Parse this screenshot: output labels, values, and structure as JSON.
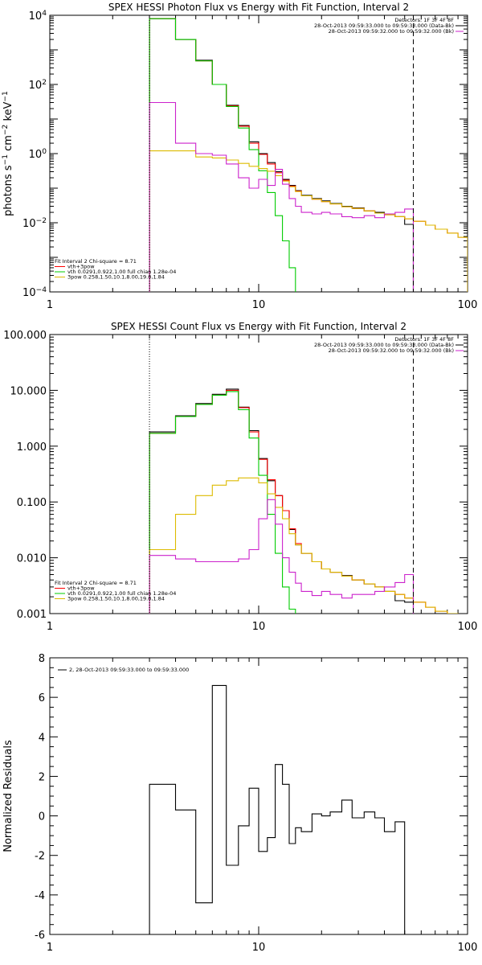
{
  "chart_data": [
    {
      "type": "line",
      "title": "SPEX HESSI Photon Flux vs Energy with Fit Function, Interval 2",
      "ylabel": "photons s⁻¹ cm⁻² keV⁻¹",
      "xlabel": "",
      "xscale": "log",
      "yscale": "log",
      "xlim": [
        1,
        100
      ],
      "ylim": [
        0.0001,
        10000
      ],
      "x_ticks": [
        "1",
        "10",
        "100"
      ],
      "y_ticks": [
        "10⁻⁴",
        "10⁻²",
        "10⁰",
        "10²",
        "10⁴"
      ],
      "legend_top_right": [
        "Detectors: 1F 3F 4F 8F",
        "28-Oct-2013 09:59:33.000 to 09:59:33.000 (Data-Bk)",
        "28-Oct-2013 09:59:32.000 to 09:59:32.000 (Bk)"
      ],
      "legend_bottom_left": [
        "Fit Interval 2   Chi-square = 8.71",
        "vth+3pow",
        "vth 0.0291,0.922,1.00  full chian 1.28e-04",
        "3pow 0.258,1.50,10.1,8.00,19.0,1.84"
      ],
      "markers": {
        "dotted_x": 3.0,
        "dashed_x": 55
      },
      "colors": {
        "data": "#000000",
        "total": "#ff0000",
        "vth": "#00cc00",
        "pow": "#ddbb00",
        "bk": "#cc22cc"
      },
      "edges": [
        3.0,
        4.0,
        5.0,
        6.0,
        7.0,
        8.0,
        9.0,
        10.0,
        11.0,
        12.0,
        13.0,
        14.0,
        15.0,
        16.0,
        18.0,
        20.0,
        22.0,
        25.0,
        28.0,
        32.0,
        36.0,
        40.0,
        45.0,
        50.0,
        55.0,
        63.0,
        70.0,
        80.0,
        90.0,
        100.0
      ],
      "series": [
        {
          "name": "Data-Bk",
          "color": "#000000",
          "values": [
            8000,
            2000,
            500,
            100,
            25,
            6.5,
            2.2,
            1.0,
            0.55,
            0.3,
            0.18,
            0.12,
            0.085,
            0.062,
            0.05,
            0.043,
            0.036,
            0.03,
            0.027,
            0.022,
            0.02,
            0.018,
            0.015,
            0.009
          ]
        },
        {
          "name": "vth+3pow",
          "color": "#ff0000",
          "values": [
            8000,
            2000,
            480,
            100,
            24,
            6.2,
            2.0,
            0.95,
            0.5,
            0.28,
            0.17,
            0.115,
            0.082,
            0.06,
            0.048,
            0.041,
            0.035,
            0.029,
            0.026,
            0.022,
            0.019,
            0.017,
            0.015,
            0.013,
            0.011,
            0.0085,
            0.0065,
            0.005,
            0.0038
          ]
        },
        {
          "name": "vth",
          "color": "#00cc00",
          "values": [
            8000,
            2000,
            480,
            100,
            23,
            5.5,
            1.3,
            0.32,
            0.075,
            0.016,
            0.003,
            0.0005,
            9e-05,
            1e-05
          ]
        },
        {
          "name": "3pow",
          "color": "#ddbb00",
          "values": [
            1.2,
            1.2,
            0.8,
            0.75,
            0.65,
            0.52,
            0.43,
            0.37,
            0.31,
            0.23,
            0.16,
            0.11,
            0.08,
            0.06,
            0.048,
            0.041,
            0.035,
            0.029,
            0.026,
            0.022,
            0.019,
            0.017,
            0.015,
            0.013,
            0.011,
            0.0085,
            0.0065,
            0.005,
            0.0038
          ]
        },
        {
          "name": "Bk",
          "color": "#cc22cc",
          "values": [
            30,
            2.0,
            1.0,
            0.9,
            0.5,
            0.2,
            0.1,
            0.18,
            0.12,
            0.35,
            0.13,
            0.05,
            0.03,
            0.02,
            0.018,
            0.02,
            0.018,
            0.015,
            0.014,
            0.016,
            0.014,
            0.018,
            0.02,
            0.025
          ]
        }
      ]
    },
    {
      "type": "line",
      "title": "SPEX HESSI Count Flux vs Energy with Fit Function, Interval 2",
      "ylabel": "",
      "xlabel": "",
      "xscale": "log",
      "yscale": "log",
      "xlim": [
        1,
        100
      ],
      "ylim": [
        0.001,
        100
      ],
      "x_ticks": [
        "1",
        "10",
        "100"
      ],
      "y_ticks": [
        "0.001",
        "0.010",
        "0.100",
        "1.000",
        "10.000",
        "100.000"
      ],
      "legend_top_right": [
        "Detectors: 1F 3F 4F 8F",
        "28-Oct-2013 09:59:33.000 to 09:59:33.000 (Data-Bk)",
        "28-Oct-2013 09:59:32.000 to 09:59:32.000 (Bk)"
      ],
      "legend_bottom_left": [
        "Fit Interval 2   Chi-square = 8.71",
        "vth+3pow",
        "vth 0.0291,0.922,1.00  full chian 1.28e-04",
        "3pow 0.258,1.50,10.1,8.00,19.0,1.84"
      ],
      "markers": {
        "dotted_x": 3.0,
        "dashed_x": 55
      },
      "colors": {
        "data": "#000000",
        "total": "#ff0000",
        "vth": "#00cc00",
        "pow": "#ddbb00",
        "bk": "#cc22cc"
      },
      "edges": [
        3.0,
        4.0,
        5.0,
        6.0,
        7.0,
        8.0,
        9.0,
        10.0,
        11.0,
        12.0,
        13.0,
        14.0,
        15.0,
        16.0,
        18.0,
        20.0,
        22.0,
        25.0,
        28.0,
        32.0,
        36.0,
        40.0,
        45.0,
        50.0,
        55.0,
        63.0,
        70.0,
        80.0,
        90.0,
        100.0
      ],
      "series": [
        {
          "name": "Data-Bk",
          "color": "#000000",
          "values": [
            1.8,
            3.5,
            5.8,
            8.5,
            10.5,
            5.0,
            1.9,
            0.6,
            0.24,
            0.13,
            0.07,
            0.032,
            0.017,
            0.012,
            0.0085,
            0.0063,
            0.0055,
            0.0048,
            0.004,
            0.0034,
            0.003,
            0.0025,
            0.0017,
            0.0016
          ]
        },
        {
          "name": "vth+3pow",
          "color": "#ff0000",
          "values": [
            1.7,
            3.4,
            5.6,
            8.2,
            10.0,
            4.9,
            1.8,
            0.58,
            0.25,
            0.13,
            0.07,
            0.033,
            0.018,
            0.012,
            0.0085,
            0.0063,
            0.0055,
            0.0047,
            0.004,
            0.0034,
            0.003,
            0.0025,
            0.0022,
            0.0019,
            0.0016,
            0.0013,
            0.0011,
            0.001,
            0.0009
          ]
        },
        {
          "name": "vth",
          "color": "#00cc00",
          "values": [
            1.7,
            3.4,
            5.6,
            8.2,
            9.5,
            4.5,
            1.4,
            0.3,
            0.06,
            0.012,
            0.003,
            0.0012,
            0.0008
          ]
        },
        {
          "name": "3pow",
          "color": "#ddbb00",
          "values": [
            0.014,
            0.06,
            0.13,
            0.2,
            0.24,
            0.27,
            0.27,
            0.22,
            0.14,
            0.08,
            0.05,
            0.027,
            0.017,
            0.012,
            0.0085,
            0.0063,
            0.0055,
            0.0047,
            0.004,
            0.0034,
            0.003,
            0.0025,
            0.0022,
            0.0019,
            0.0016,
            0.0013,
            0.0011,
            0.001,
            0.0009
          ]
        },
        {
          "name": "Bk",
          "color": "#cc22cc",
          "values": [
            0.011,
            0.0095,
            0.0085,
            0.0085,
            0.0085,
            0.0095,
            0.014,
            0.05,
            0.11,
            0.04,
            0.01,
            0.0055,
            0.0035,
            0.0025,
            0.0021,
            0.0025,
            0.0022,
            0.0019,
            0.0022,
            0.0022,
            0.0025,
            0.003,
            0.0036,
            0.005
          ]
        }
      ]
    },
    {
      "type": "line",
      "title": "",
      "ylabel": "Normalized Residuals",
      "xlabel": "",
      "xscale": "log",
      "yscale": "linear",
      "xlim": [
        1,
        100
      ],
      "ylim": [
        -6,
        8
      ],
      "x_ticks": [
        "1",
        "10",
        "100"
      ],
      "y_ticks": [
        "-6",
        "-4",
        "-2",
        "0",
        "2",
        "4",
        "6",
        "8"
      ],
      "legend_top_left": [
        "2, 28-Oct-2013 09:59:33.000 to 09:59:33.000"
      ],
      "edges": [
        3.0,
        4.0,
        5.0,
        6.0,
        7.0,
        8.0,
        9.0,
        10.0,
        11.0,
        12.0,
        13.0,
        14.0,
        15.0,
        16.0,
        18.0,
        20.0,
        22.0,
        25.0,
        28.0,
        32.0,
        36.0,
        40.0,
        45.0,
        50.0,
        55.0
      ],
      "series": [
        {
          "name": "2, 28-Oct-2013 09:59:33.000 to 09:59:33.000",
          "color": "#000000",
          "values": [
            1.6,
            0.3,
            -4.4,
            6.6,
            -2.5,
            -0.5,
            1.4,
            -1.8,
            -1.1,
            2.6,
            1.6,
            -1.4,
            -0.6,
            -0.8,
            0.1,
            0.0,
            0.2,
            0.8,
            -0.1,
            0.2,
            -0.1,
            -0.8,
            -0.3,
            -6
          ]
        }
      ]
    }
  ]
}
